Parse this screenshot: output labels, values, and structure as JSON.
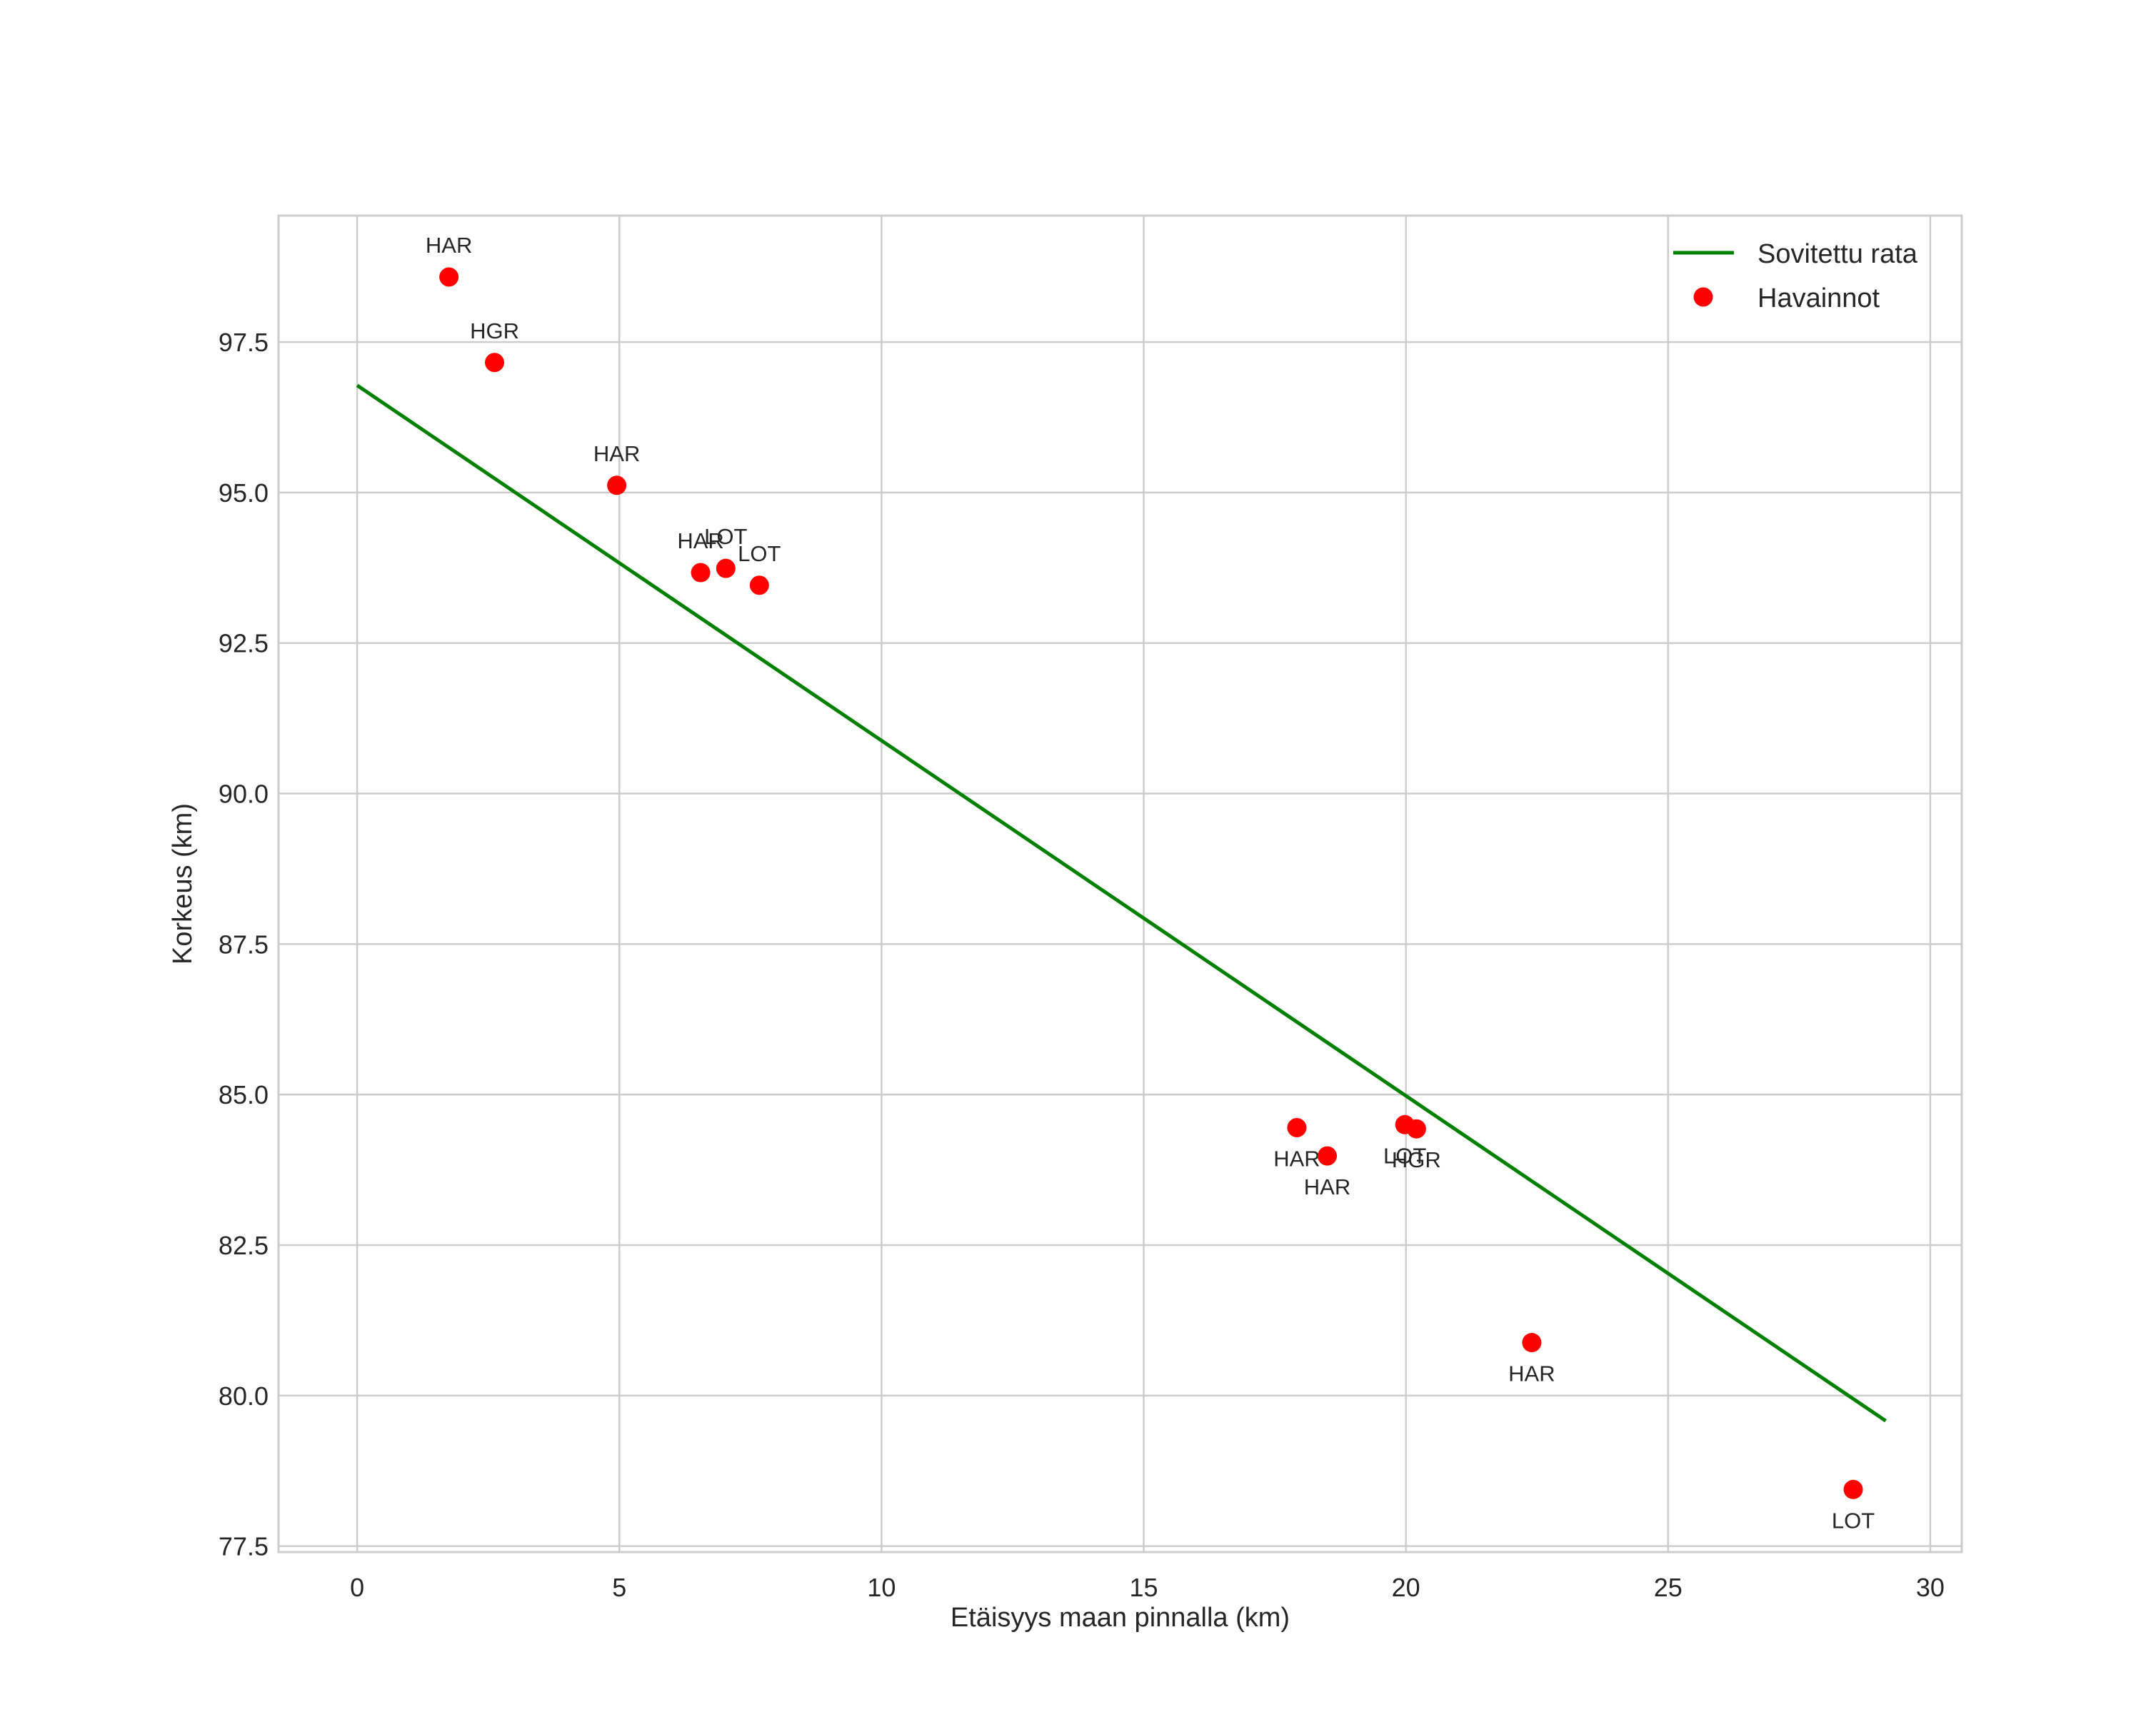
{
  "chart_data": {
    "type": "scatter",
    "title": "",
    "xlabel": "Etäisyys maan pinnalla (km)",
    "ylabel": "Korkeus (km)",
    "xlim": [
      -1.5,
      30.6
    ],
    "ylim": [
      77.4,
      99.6
    ],
    "xticks": [
      0,
      5,
      10,
      15,
      20,
      25,
      30
    ],
    "xtick_labels": [
      "0",
      "5",
      "10",
      "15",
      "20",
      "25",
      "30"
    ],
    "yticks": [
      77.5,
      80.0,
      82.5,
      85.0,
      87.5,
      90.0,
      92.5,
      95.0,
      97.5
    ],
    "ytick_labels": [
      "77.5",
      "80.0",
      "82.5",
      "85.0",
      "87.5",
      "90.0",
      "92.5",
      "95.0",
      "97.5"
    ],
    "grid": true,
    "legend_position": "top-right",
    "series": [
      {
        "name": "Sovitettu rata",
        "kind": "line",
        "color": "#008000",
        "x": [
          0,
          29.15
        ],
        "y": [
          96.78,
          79.58
        ]
      },
      {
        "name": "Havainnot",
        "kind": "scatter",
        "color": "#ff0000",
        "points": [
          {
            "x": 1.75,
            "y": 98.58,
            "label": "HAR",
            "label_side": "above"
          },
          {
            "x": 2.62,
            "y": 97.16,
            "label": "HGR",
            "label_side": "above"
          },
          {
            "x": 4.95,
            "y": 95.12,
            "label": "HAR",
            "label_side": "above"
          },
          {
            "x": 6.55,
            "y": 93.67,
            "label": "HAR",
            "label_side": "above"
          },
          {
            "x": 7.03,
            "y": 93.74,
            "label": "LOT",
            "label_side": "above"
          },
          {
            "x": 7.67,
            "y": 93.46,
            "label": "LOT",
            "label_side": "above"
          },
          {
            "x": 17.92,
            "y": 84.45,
            "label": "HAR",
            "label_side": "below"
          },
          {
            "x": 18.5,
            "y": 83.98,
            "label": "HAR",
            "label_side": "below"
          },
          {
            "x": 19.98,
            "y": 84.5,
            "label": "LOT",
            "label_side": "below"
          },
          {
            "x": 20.2,
            "y": 84.43,
            "label": "HGR",
            "label_side": "below"
          },
          {
            "x": 22.4,
            "y": 80.88,
            "label": "HAR",
            "label_side": "below"
          },
          {
            "x": 28.53,
            "y": 78.44,
            "label": "LOT",
            "label_side": "below"
          }
        ]
      }
    ]
  }
}
